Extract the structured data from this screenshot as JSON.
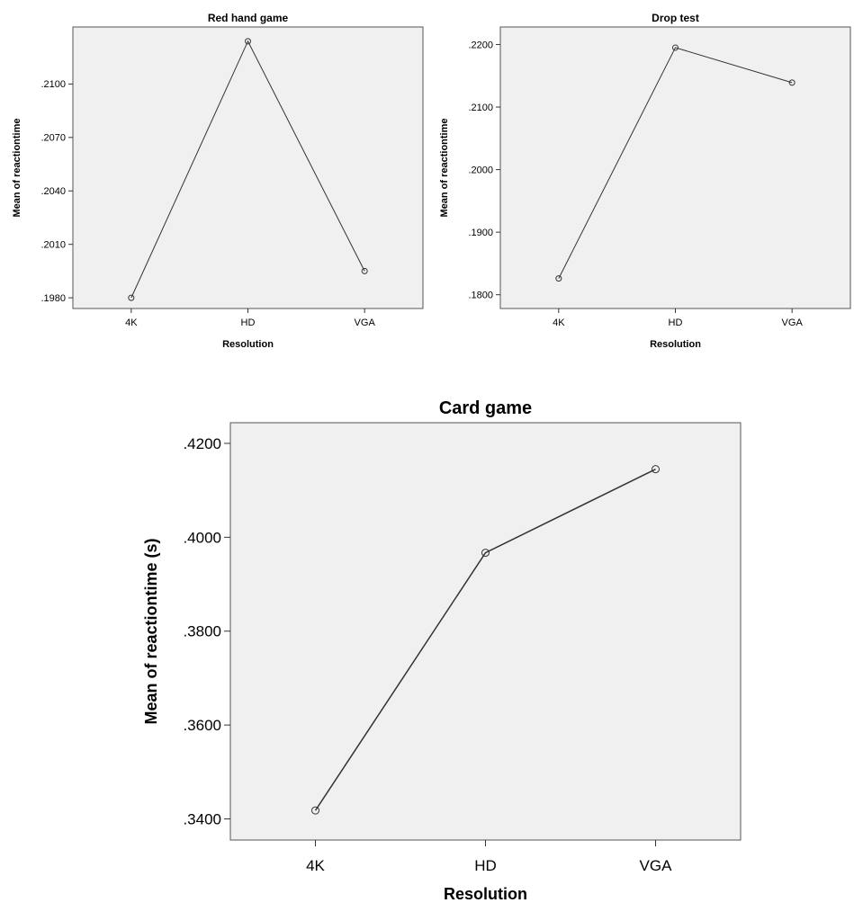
{
  "chart_data": [
    {
      "type": "line",
      "title": "Red hand game",
      "xlabel": "Resolution",
      "ylabel": "Mean of reactiontime",
      "categories": [
        "4K",
        "HD",
        "VGA"
      ],
      "values": [
        0.198,
        0.2124,
        0.1995
      ],
      "ylim": [
        0.1974,
        0.2132
      ],
      "yticks": [
        ".1980",
        ".2010",
        ".2040",
        ".2070",
        ".2100"
      ],
      "ytick_values": [
        0.198,
        0.201,
        0.204,
        0.207,
        0.21
      ],
      "grid": false,
      "background": "#f0f0f0",
      "line_color": "#333333"
    },
    {
      "type": "line",
      "title": "Drop test",
      "xlabel": "Resolution",
      "ylabel": "Mean of reactiontime",
      "categories": [
        "4K",
        "HD",
        "VGA"
      ],
      "values": [
        0.1826,
        0.2195,
        0.2139
      ],
      "ylim": [
        0.1778,
        0.2228
      ],
      "yticks": [
        ".1800",
        ".1900",
        ".2000",
        ".2100",
        ".2200"
      ],
      "ytick_values": [
        0.18,
        0.19,
        0.2,
        0.21,
        0.22
      ],
      "grid": false,
      "background": "#f0f0f0",
      "line_color": "#333333"
    },
    {
      "type": "line",
      "title": "Card game",
      "xlabel": "Resolution",
      "ylabel": "Mean of reactiontime (s)",
      "categories": [
        "4K",
        "HD",
        "VGA"
      ],
      "values": [
        0.3418,
        0.3967,
        0.4145
      ],
      "ylim": [
        0.3355,
        0.4244
      ],
      "yticks": [
        ".3400",
        ".3600",
        ".3800",
        ".4000",
        ".4200"
      ],
      "ytick_values": [
        0.34,
        0.36,
        0.38,
        0.4,
        0.42
      ],
      "grid": false,
      "background": "#f0f0f0",
      "line_color": "#333333"
    }
  ]
}
